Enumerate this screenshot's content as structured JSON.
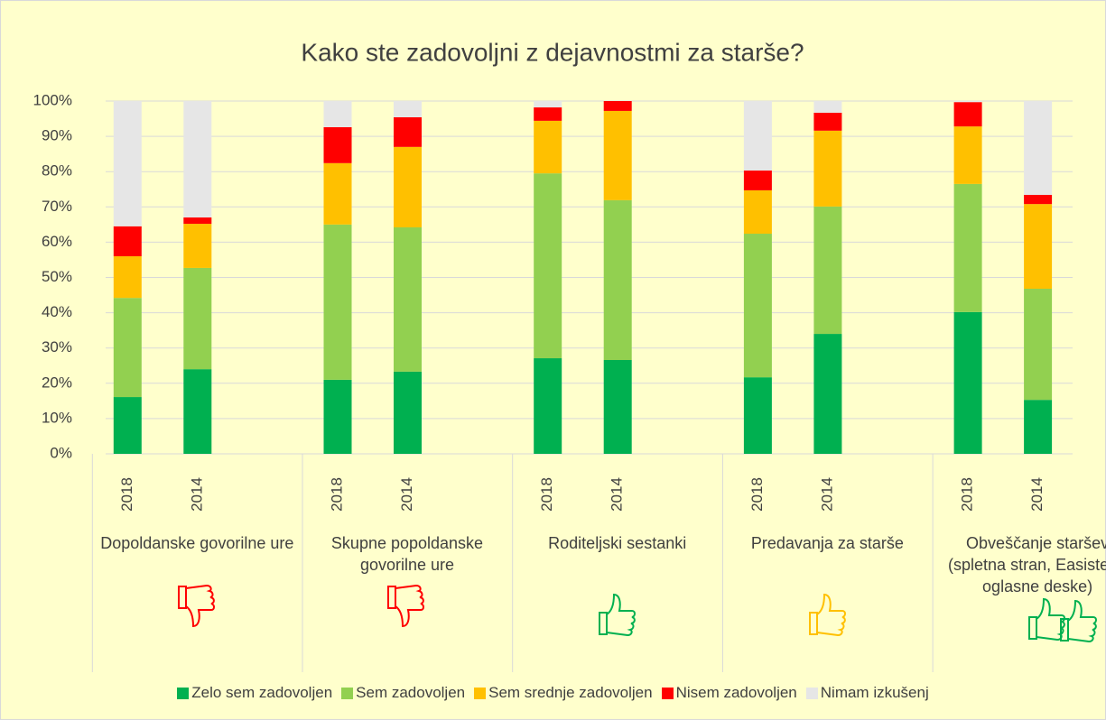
{
  "chart_data": {
    "type": "stacked_bar",
    "title": "Kako ste zadovoljni z dejavnostmi za starše?",
    "groups": [
      "Dopoldanske govorilne ure",
      "Skupne popoldanske govorilne ure",
      "Roditeljski sestanki",
      "Predavanja za starše",
      "Obveščanje staršev (spletna stran, Easistent, oglasne deske)"
    ],
    "categories": [
      "2018",
      "2014",
      "2018",
      "2014",
      "2018",
      "2014",
      "2018",
      "2014",
      "2018",
      "2014"
    ],
    "series": [
      {
        "name": "Zelo sem zadovoljen",
        "color": "#00b050",
        "values": [
          16.1,
          24.0,
          21.0,
          23.3,
          27.1,
          26.6,
          21.7,
          34.0,
          40.2,
          15.3
        ]
      },
      {
        "name": "Sem zadovoljen",
        "color": "#92d050",
        "values": [
          28.1,
          28.7,
          44.0,
          40.9,
          52.4,
          45.3,
          40.7,
          36.1,
          36.3,
          31.5
        ]
      },
      {
        "name": "Sem srednje zadovoljen",
        "color": "#ffc000",
        "values": [
          11.8,
          12.5,
          17.4,
          22.8,
          14.9,
          25.3,
          12.3,
          21.5,
          16.3,
          24.0
        ]
      },
      {
        "name": "Nisem zadovoljen",
        "color": "#ff0000",
        "values": [
          8.5,
          1.8,
          10.2,
          8.4,
          3.8,
          2.8,
          5.6,
          5.1,
          6.9,
          2.6
        ]
      },
      {
        "name": "Nimam izkušenj",
        "color": "#e6e6e6",
        "values": [
          35.5,
          33.0,
          7.4,
          4.6,
          1.8,
          0,
          19.7,
          3.3,
          0.3,
          26.6
        ]
      }
    ],
    "ylim": [
      0,
      100
    ],
    "yticks": [
      {
        "value": 0,
        "label": "0%"
      },
      {
        "value": 10,
        "label": "10%"
      },
      {
        "value": 20,
        "label": "20%"
      },
      {
        "value": 30,
        "label": "30%"
      },
      {
        "value": 40,
        "label": "40%"
      },
      {
        "value": 50,
        "label": "50%"
      },
      {
        "value": 60,
        "label": "60%"
      },
      {
        "value": 70,
        "label": "70%"
      },
      {
        "value": 80,
        "label": "80%"
      },
      {
        "value": 90,
        "label": "90%"
      },
      {
        "value": 100,
        "label": "100%"
      }
    ],
    "grid": true,
    "legend": "bottom"
  }
}
